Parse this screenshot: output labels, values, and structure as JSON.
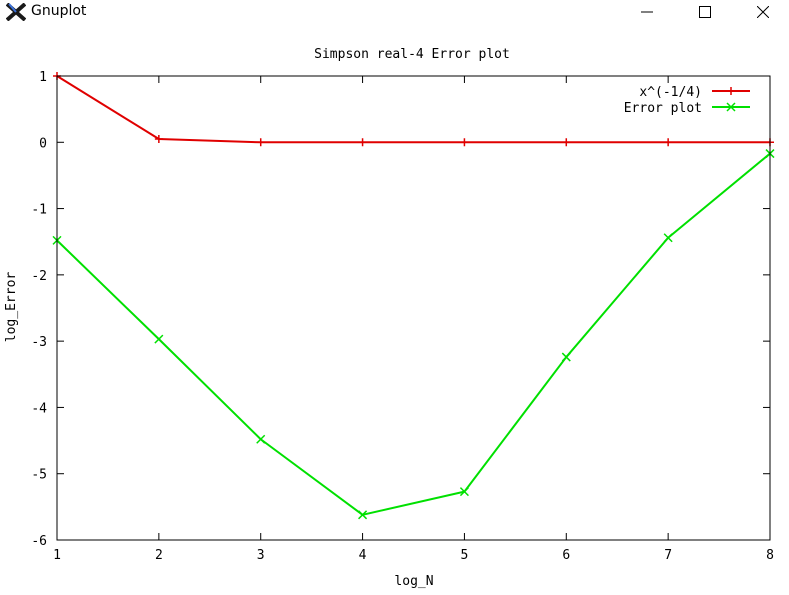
{
  "window": {
    "title": "Gnuplot"
  },
  "colors": {
    "red": "#e00000",
    "green": "#00e000"
  },
  "chart_data": {
    "type": "line",
    "title": "Simpson real-4 Error plot",
    "xlabel": "log_N",
    "ylabel": "log_Error",
    "xlim": [
      1,
      8
    ],
    "ylim": [
      -6,
      1
    ],
    "xticks": [
      "1",
      "2",
      "3",
      "4",
      "5",
      "6",
      "7",
      "8"
    ],
    "yticks": [
      "1",
      "0",
      "-1",
      "-2",
      "-3",
      "-4",
      "-5",
      "-6"
    ],
    "legend_position": "top-right",
    "series": [
      {
        "name": "x^(-1/4)",
        "x": [
          1,
          2,
          3,
          4,
          5,
          6,
          7,
          8
        ],
        "values": [
          1.0,
          0.05,
          0.0,
          0.0,
          0.0,
          0.0,
          0.0,
          0.0
        ],
        "color": "#e00000",
        "marker": "plus"
      },
      {
        "name": "Error plot",
        "x": [
          1,
          2,
          3,
          4,
          5,
          6,
          7,
          8
        ],
        "values": [
          -1.48,
          -2.97,
          -4.48,
          -5.62,
          -5.27,
          -3.24,
          -1.44,
          -0.17
        ],
        "color": "#00e000",
        "marker": "cross"
      }
    ]
  }
}
